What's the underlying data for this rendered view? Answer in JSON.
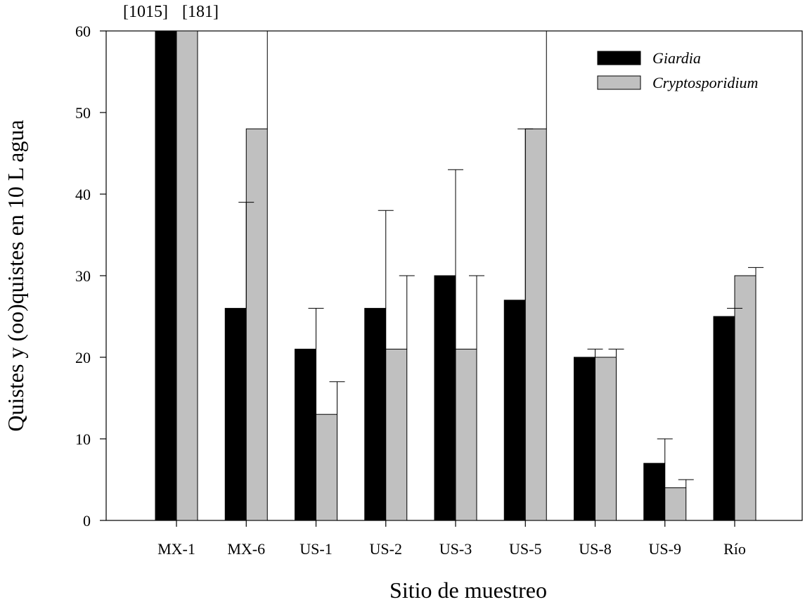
{
  "chart_data": {
    "type": "bar",
    "title": "",
    "xlabel": "Sitio de muestreo",
    "ylabel": "Quistes y (oo)quistes en 10 L agua",
    "ylim": [
      0,
      60
    ],
    "yticks": [
      0,
      10,
      20,
      30,
      40,
      50,
      60
    ],
    "categories": [
      "MX-1",
      "MX-6",
      "US-1",
      "US-2",
      "US-3",
      "US-5",
      "US-8",
      "US-9",
      "Río"
    ],
    "series": [
      {
        "name": "Giardia",
        "color": "#000000",
        "values": [
          60,
          26,
          21,
          26,
          30,
          27,
          20,
          7,
          25
        ],
        "error_upper": [
          60,
          39,
          26,
          38,
          43,
          48,
          21,
          10,
          26
        ]
      },
      {
        "name": "Cryptosporidium",
        "color": "#c0c0c0",
        "values": [
          60,
          48,
          13,
          21,
          21,
          48,
          20,
          4,
          30
        ],
        "error_upper": [
          60,
          60,
          17,
          30,
          30,
          60,
          21,
          5,
          31
        ]
      }
    ],
    "overflow_annotations": [
      "[1015]",
      "[181]"
    ],
    "legend_position": "top-right",
    "grid": false
  }
}
